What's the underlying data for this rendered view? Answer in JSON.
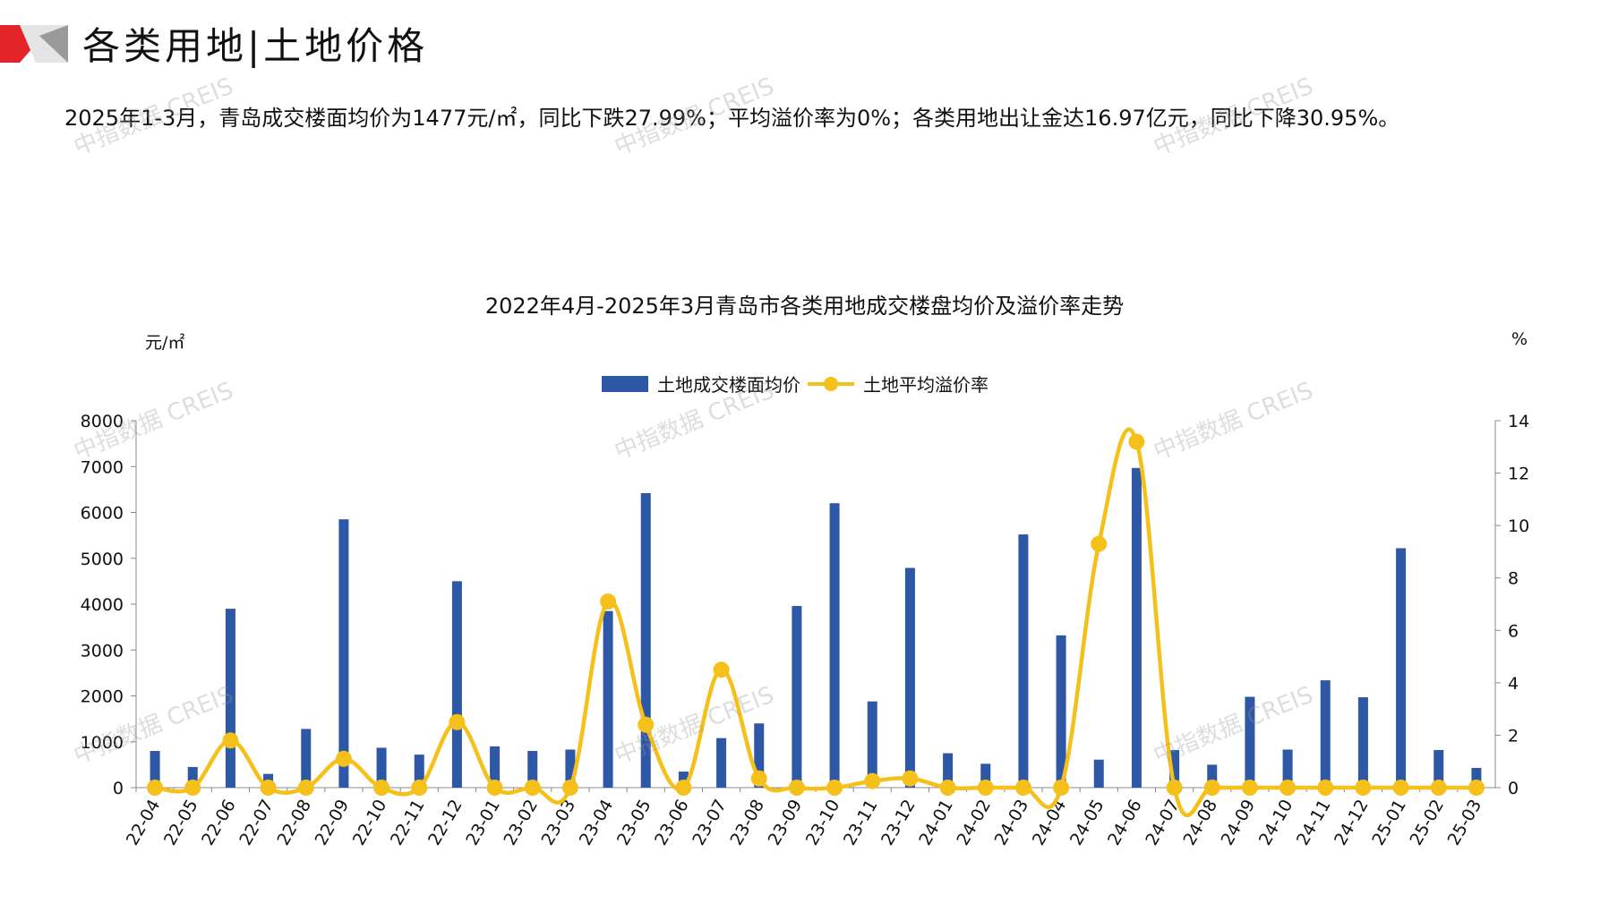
{
  "page": {
    "title": "各类用地|土地价格",
    "summary": "2025年1-3月，青岛成交楼面均价为1477元/㎡，同比下跌27.99%；平均溢价率为0%；各类用地出让金达16.97亿元，同比下降30.95%。",
    "watermark": "中指数据 CREIS"
  },
  "colors": {
    "bar": "#2E57A6",
    "line": "#F5C01A",
    "accent_red": "#E3242B",
    "accent_gray": "#9A9A9A"
  },
  "chart_data": {
    "type": "bar",
    "title": "2022年4月-2025年3月青岛市各类用地成交楼盘均价及溢价率走势",
    "y_left_unit": "元/㎡",
    "y_right_unit": "%",
    "categories": [
      "22-04",
      "22-05",
      "22-06",
      "22-07",
      "22-08",
      "22-09",
      "22-10",
      "22-11",
      "22-12",
      "23-01",
      "23-02",
      "23-03",
      "23-04",
      "23-05",
      "23-06",
      "23-07",
      "23-08",
      "23-09",
      "23-10",
      "23-11",
      "23-12",
      "24-01",
      "24-02",
      "24-03",
      "24-04",
      "24-05",
      "24-06",
      "24-07",
      "24-08",
      "24-09",
      "24-10",
      "24-11",
      "24-12",
      "25-01",
      "25-02",
      "25-03"
    ],
    "series": [
      {
        "name": "土地成交楼面均价",
        "type": "bar",
        "axis": "left",
        "values": [
          800,
          450,
          3900,
          300,
          1280,
          5850,
          870,
          720,
          4500,
          900,
          800,
          830,
          3850,
          6420,
          350,
          1080,
          1400,
          3960,
          6200,
          1880,
          4790,
          750,
          520,
          5520,
          3320,
          610,
          6970,
          820,
          500,
          1980,
          830,
          2340,
          1970,
          5220,
          820,
          430
        ]
      },
      {
        "name": "土地平均溢价率",
        "type": "line",
        "axis": "right",
        "values": [
          0,
          0,
          1.8,
          0,
          0,
          1.1,
          0,
          0,
          2.5,
          0,
          0,
          0,
          7.1,
          2.4,
          0,
          4.5,
          0.35,
          0,
          0,
          0.25,
          0.35,
          0,
          0,
          0,
          0,
          9.3,
          13.2,
          0,
          0,
          0,
          0,
          0,
          0,
          0,
          0,
          0
        ]
      }
    ],
    "y_left": {
      "min": 0,
      "max": 8000,
      "ticks": [
        0,
        1000,
        2000,
        3000,
        4000,
        5000,
        6000,
        7000,
        8000
      ]
    },
    "y_right": {
      "min": 0,
      "max": 14,
      "ticks": [
        0,
        2,
        4,
        6,
        8,
        10,
        12,
        14
      ]
    },
    "legend_position": "top-center",
    "grid": false
  }
}
